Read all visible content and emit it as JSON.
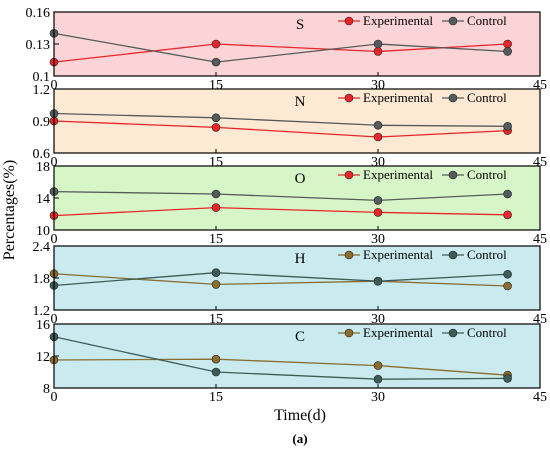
{
  "figure": {
    "ylabel": "Percentages(%)",
    "xlabel": "Time(d)",
    "caption": "(a)"
  },
  "chart_data": [
    {
      "type": "line",
      "label": "S",
      "background": "#fbd4d8",
      "x": [
        0,
        15,
        30,
        42
      ],
      "xlim": [
        0,
        45
      ],
      "xticks": [
        "0",
        "15",
        "30",
        "45"
      ],
      "ylim": [
        0.1,
        0.16
      ],
      "yticks": [
        "0.1",
        "0.13",
        "0.16"
      ],
      "legend_position": "top-right",
      "series": [
        {
          "name": "Experimental",
          "color": "#e8262a",
          "values": [
            0.113,
            0.13,
            0.123,
            0.13
          ]
        },
        {
          "name": "Control",
          "color": "#545b5a",
          "values": [
            0.14,
            0.113,
            0.13,
            0.123
          ]
        }
      ]
    },
    {
      "type": "line",
      "label": "N",
      "background": "#fde9d4",
      "x": [
        0,
        15,
        30,
        42
      ],
      "xlim": [
        0,
        45
      ],
      "xticks": [
        "0",
        "15",
        "30",
        "45"
      ],
      "ylim": [
        0.6,
        1.2
      ],
      "yticks": [
        "0.6",
        "0.9",
        "1.2"
      ],
      "legend_position": "top-right",
      "series": [
        {
          "name": "Experimental",
          "color": "#e8262a",
          "values": [
            0.9,
            0.84,
            0.75,
            0.81
          ]
        },
        {
          "name": "Control",
          "color": "#545b5a",
          "values": [
            0.97,
            0.93,
            0.86,
            0.85
          ]
        }
      ]
    },
    {
      "type": "line",
      "label": "O",
      "background": "#d6f6c7",
      "x": [
        0,
        15,
        30,
        42
      ],
      "xlim": [
        0,
        45
      ],
      "xticks": [
        "0",
        "15",
        "30",
        "45"
      ],
      "ylim": [
        10,
        18
      ],
      "yticks": [
        "10",
        "14",
        "18"
      ],
      "legend_position": "top-right",
      "series": [
        {
          "name": "Experimental",
          "color": "#e8262a",
          "values": [
            11.8,
            12.8,
            12.2,
            11.9
          ]
        },
        {
          "name": "Control",
          "color": "#545b5a",
          "values": [
            14.8,
            14.5,
            13.7,
            14.5
          ]
        }
      ]
    },
    {
      "type": "line",
      "label": "H",
      "background": "#c9ebef",
      "x": [
        0,
        15,
        30,
        42
      ],
      "xlim": [
        0,
        45
      ],
      "xticks": [
        "0",
        "15",
        "30",
        "45"
      ],
      "ylim": [
        1.2,
        2.4
      ],
      "yticks": [
        "1.2",
        "1.8",
        "2.4"
      ],
      "legend_position": "top-right",
      "series": [
        {
          "name": "Experimental",
          "color": "#8a6d2f",
          "values": [
            1.88,
            1.68,
            1.74,
            1.65
          ]
        },
        {
          "name": "Control",
          "color": "#3e5c57",
          "values": [
            1.66,
            1.9,
            1.74,
            1.87
          ]
        }
      ]
    },
    {
      "type": "line",
      "label": "C",
      "background": "#c9ebef",
      "x": [
        0,
        15,
        30,
        42
      ],
      "xlim": [
        0,
        45
      ],
      "xticks": [
        "0",
        "15",
        "30",
        "45"
      ],
      "ylim": [
        8,
        16
      ],
      "yticks": [
        "8",
        "12",
        "16"
      ],
      "legend_position": "top-right",
      "series": [
        {
          "name": "Experimental",
          "color": "#8a6d2f",
          "values": [
            11.5,
            11.6,
            10.8,
            9.6
          ]
        },
        {
          "name": "Control",
          "color": "#3e5c57",
          "values": [
            14.4,
            10.0,
            9.1,
            9.2
          ]
        }
      ]
    }
  ]
}
